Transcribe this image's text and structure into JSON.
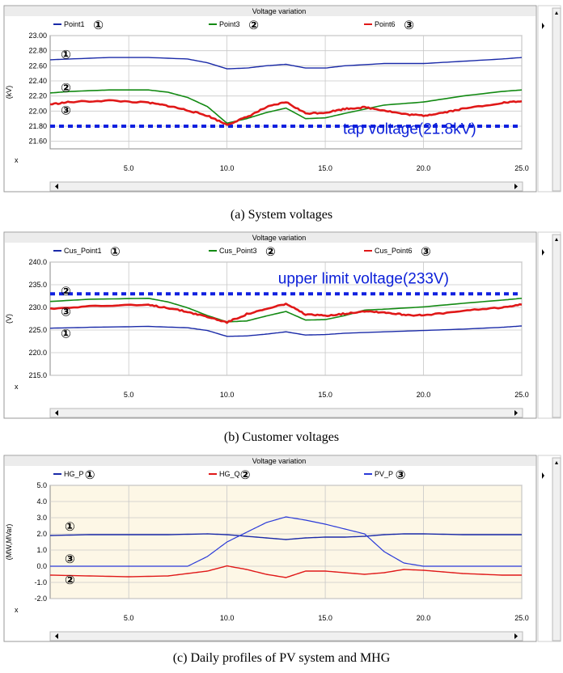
{
  "captions": [
    "(a)  System voltages",
    "(b)  Customer voltages",
    "(c)  Daily profiles of PV system and MHG"
  ],
  "colors": {
    "blue": "#1a2aa8",
    "green": "#138a13",
    "red": "#e01818",
    "dash": "#1020e0",
    "plotbg_c": "#fdf7e6"
  },
  "chart_data": [
    {
      "type": "line",
      "title": "Voltage variation",
      "ylabel": "(kV)",
      "xlabel": "x",
      "xlim": [
        1,
        25
      ],
      "ylim": [
        21.5,
        23.0
      ],
      "xticks": [
        "5.0",
        "10.0",
        "15.0",
        "20.0",
        "25.0"
      ],
      "yticks": [
        "21.60",
        "21.80",
        "22.00",
        "22.20",
        "22.40",
        "22.60",
        "22.80",
        "23.00"
      ],
      "legend": [
        {
          "label": "Point1",
          "marker": "①",
          "color": "#1a2aa8"
        },
        {
          "label": "Point3",
          "marker": "②",
          "color": "#138a13"
        },
        {
          "label": "Point6",
          "marker": "③",
          "color": "#e01818"
        }
      ],
      "series_markers": [
        {
          "text": "①",
          "x": 1.8,
          "y": 22.75,
          "style": "thin"
        },
        {
          "text": "②",
          "x": 1.8,
          "y": 22.31,
          "style": "bold"
        },
        {
          "text": "③",
          "x": 1.8,
          "y": 22.01,
          "style": "bold"
        }
      ],
      "series": [
        {
          "name": "Point1",
          "color": "#1a2aa8",
          "width": 1.4,
          "x": [
            1,
            2,
            4,
            6,
            8,
            9,
            10,
            11,
            12,
            13,
            14,
            15,
            16,
            18,
            20,
            22,
            24,
            25
          ],
          "y": [
            22.68,
            22.69,
            22.71,
            22.71,
            22.69,
            22.64,
            22.56,
            22.57,
            22.6,
            22.62,
            22.57,
            22.57,
            22.6,
            22.63,
            22.63,
            22.66,
            22.69,
            22.71
          ]
        },
        {
          "name": "Point3",
          "color": "#138a13",
          "width": 1.6,
          "x": [
            1,
            2,
            4,
            6,
            7,
            8,
            9,
            10,
            11,
            12,
            13,
            14,
            15,
            16,
            18,
            20,
            22,
            24,
            25
          ],
          "y": [
            22.24,
            22.26,
            22.28,
            22.28,
            22.25,
            22.18,
            22.06,
            21.84,
            21.9,
            21.98,
            22.04,
            21.9,
            21.91,
            21.97,
            22.08,
            22.12,
            22.2,
            22.26,
            22.28
          ]
        },
        {
          "name": "Point6",
          "color": "#e01818",
          "width": 2.6,
          "x": [
            1,
            2,
            4,
            6,
            7,
            8,
            9,
            10,
            11,
            12,
            13,
            14,
            15,
            16,
            17,
            18,
            19,
            20,
            21,
            22,
            24,
            25
          ],
          "y": [
            22.09,
            22.12,
            22.14,
            22.11,
            22.07,
            22.01,
            21.94,
            21.82,
            21.92,
            22.05,
            22.12,
            21.97,
            21.98,
            22.03,
            22.05,
            22.01,
            21.96,
            21.94,
            21.98,
            22.03,
            22.11,
            22.13
          ]
        }
      ],
      "reference_line": {
        "y": 21.8,
        "color": "#1020e0"
      },
      "annotations": [
        {
          "text": "tap voltage(21.8kV)",
          "x": 15.9,
          "y": 21.7
        }
      ]
    },
    {
      "type": "line",
      "title": "Voltage variation",
      "ylabel": "(V)",
      "xlabel": "x",
      "xlim": [
        1,
        25
      ],
      "ylim": [
        215,
        240
      ],
      "xticks": [
        "5.0",
        "10.0",
        "15.0",
        "20.0",
        "25.0"
      ],
      "yticks": [
        "215.0",
        "220.0",
        "225.0",
        "230.0",
        "235.0",
        "240.0"
      ],
      "legend": [
        {
          "label": "Cus_Point1",
          "marker": "①",
          "color": "#1a2aa8"
        },
        {
          "label": "Cus_Point3",
          "marker": "②",
          "color": "#138a13"
        },
        {
          "label": "Cus_Point6",
          "marker": "③",
          "color": "#e01818"
        }
      ],
      "series_markers": [
        {
          "text": "②",
          "x": 1.8,
          "y": 233.6,
          "style": "bold"
        },
        {
          "text": "③",
          "x": 1.8,
          "y": 229.0,
          "style": "bold"
        },
        {
          "text": "①",
          "x": 1.8,
          "y": 224.2,
          "style": "bold"
        }
      ],
      "series": [
        {
          "name": "Cus_Point1",
          "color": "#1a2aa8",
          "width": 1.4,
          "x": [
            1,
            3,
            6,
            8,
            9,
            10,
            11,
            12,
            13,
            14,
            15,
            16,
            18,
            20,
            22,
            24,
            25
          ],
          "y": [
            225.4,
            225.6,
            225.8,
            225.5,
            224.9,
            223.6,
            223.7,
            224.1,
            224.6,
            223.9,
            224.0,
            224.3,
            224.6,
            224.9,
            225.2,
            225.6,
            225.9
          ]
        },
        {
          "name": "Cus_Point3",
          "color": "#138a13",
          "width": 1.6,
          "x": [
            1,
            3,
            6,
            7,
            8,
            9,
            10,
            11,
            12,
            13,
            14,
            15,
            16,
            17,
            18,
            20,
            22,
            24,
            25
          ],
          "y": [
            231.3,
            231.8,
            232.0,
            231.2,
            229.9,
            228.2,
            226.8,
            227.0,
            228.1,
            229.1,
            227.2,
            227.3,
            228.2,
            229.4,
            229.6,
            230.1,
            230.9,
            231.6,
            232.0
          ]
        },
        {
          "name": "Cus_Point6",
          "color": "#e01818",
          "width": 2.6,
          "x": [
            1,
            3,
            6,
            7,
            8,
            9,
            10,
            11,
            12,
            13,
            14,
            15,
            16,
            17,
            18,
            19,
            20,
            22,
            24,
            25
          ],
          "y": [
            229.7,
            230.3,
            230.5,
            229.9,
            229.0,
            227.9,
            226.7,
            228.5,
            229.6,
            230.8,
            228.4,
            228.2,
            228.6,
            229.2,
            228.9,
            228.4,
            228.2,
            229.2,
            230.0,
            230.6
          ]
        }
      ],
      "reference_line": {
        "y": 233.0,
        "color": "#1020e0"
      },
      "annotations": [
        {
          "text": "upper limit voltage(233V)",
          "x": 12.6,
          "y": 235.3
        }
      ]
    },
    {
      "type": "line",
      "title": "Voltage variation",
      "ylabel": "(MW,MVar)",
      "xlabel": "x",
      "xlim": [
        1,
        25
      ],
      "ylim": [
        -2.0,
        5.0
      ],
      "xticks": [
        "5.0",
        "10.0",
        "15.0",
        "20.0",
        "25.0"
      ],
      "yticks": [
        "-2.0",
        "-1.0",
        "0.0",
        "1.0",
        "2.0",
        "3.0",
        "4.0",
        "5.0"
      ],
      "legend": [
        {
          "label": "HG_P",
          "marker": "①",
          "color": "#1a2aa8"
        },
        {
          "label": "HG_Q",
          "marker": "②",
          "color": "#e01818"
        },
        {
          "label": "PV_P",
          "marker": "③",
          "color": "#2a3ad8"
        }
      ],
      "series_markers": [
        {
          "text": "①",
          "x": 2.0,
          "y": 2.45,
          "style": "bold"
        },
        {
          "text": "③",
          "x": 2.0,
          "y": 0.45,
          "style": "bold"
        },
        {
          "text": "②",
          "x": 2.0,
          "y": -0.85,
          "style": "bold"
        }
      ],
      "series": [
        {
          "name": "HG_P",
          "color": "#1a2aa8",
          "width": 1.4,
          "x": [
            1,
            3,
            5,
            7,
            9,
            10,
            11,
            12,
            13,
            14,
            15,
            16,
            17,
            18,
            19,
            20,
            22,
            25
          ],
          "y": [
            1.9,
            1.95,
            1.95,
            1.95,
            2.0,
            1.95,
            1.85,
            1.75,
            1.65,
            1.75,
            1.8,
            1.8,
            1.85,
            1.95,
            2.0,
            2.0,
            1.95,
            1.95
          ]
        },
        {
          "name": "HG_Q",
          "color": "#e01818",
          "width": 1.4,
          "x": [
            1,
            3,
            5,
            7,
            8,
            9,
            10,
            11,
            12,
            13,
            14,
            15,
            16,
            17,
            18,
            19,
            20,
            21,
            22,
            24,
            25
          ],
          "y": [
            -0.55,
            -0.6,
            -0.65,
            -0.6,
            -0.45,
            -0.3,
            0.02,
            -0.2,
            -0.5,
            -0.7,
            -0.3,
            -0.3,
            -0.4,
            -0.5,
            -0.4,
            -0.2,
            -0.25,
            -0.35,
            -0.45,
            -0.55,
            -0.55
          ]
        },
        {
          "name": "PV_P",
          "color": "#2a3ad8",
          "width": 1.2,
          "x": [
            1,
            5,
            8,
            9,
            10,
            11,
            12,
            13,
            14,
            15,
            16,
            17,
            18,
            19,
            20,
            22,
            25
          ],
          "y": [
            0.0,
            0.0,
            0.0,
            0.6,
            1.5,
            2.1,
            2.7,
            3.05,
            2.85,
            2.6,
            2.3,
            2.0,
            0.9,
            0.2,
            0.0,
            0.0,
            0.0
          ]
        }
      ]
    }
  ]
}
